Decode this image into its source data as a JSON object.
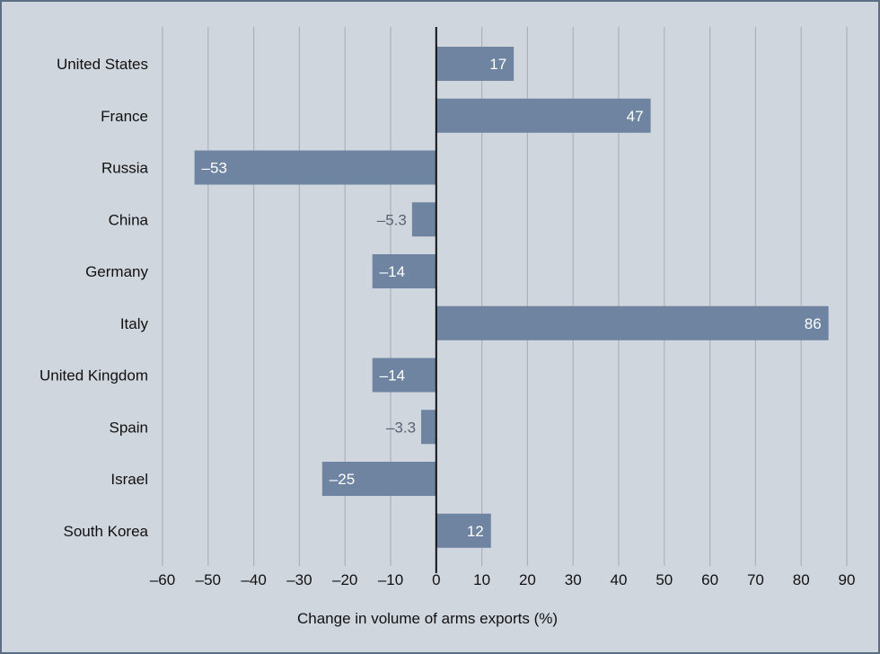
{
  "chart_data": {
    "type": "bar",
    "orientation": "horizontal",
    "categories": [
      "United States",
      "France",
      "Russia",
      "China",
      "Germany",
      "Italy",
      "United Kingdom",
      "Spain",
      "Israel",
      "South Korea"
    ],
    "values": [
      17,
      47,
      -53,
      -5.3,
      -14,
      86,
      -14,
      -3.3,
      -25,
      12
    ],
    "value_labels": [
      "17",
      "47",
      "–53",
      "–5.3",
      "–14",
      "86",
      "–14",
      "–3.3",
      "–25",
      "12"
    ],
    "xlabel": "Change in volume of arms exports (%)",
    "xlim": [
      -60,
      90
    ],
    "xticks": [
      -60,
      -50,
      -40,
      -30,
      -20,
      -10,
      0,
      10,
      20,
      30,
      40,
      50,
      60,
      70,
      80,
      90
    ],
    "xtick_labels": [
      "–60",
      "–50",
      "–40",
      "–30",
      "–20",
      "–10",
      "0",
      "10",
      "20",
      "30",
      "40",
      "50",
      "60",
      "70",
      "80",
      "90"
    ],
    "grid": "vertical",
    "colors": {
      "bar": "#6e84a0",
      "background": "#d0d6de",
      "grid": "#aab2bd",
      "border": "#5b6e84"
    }
  }
}
